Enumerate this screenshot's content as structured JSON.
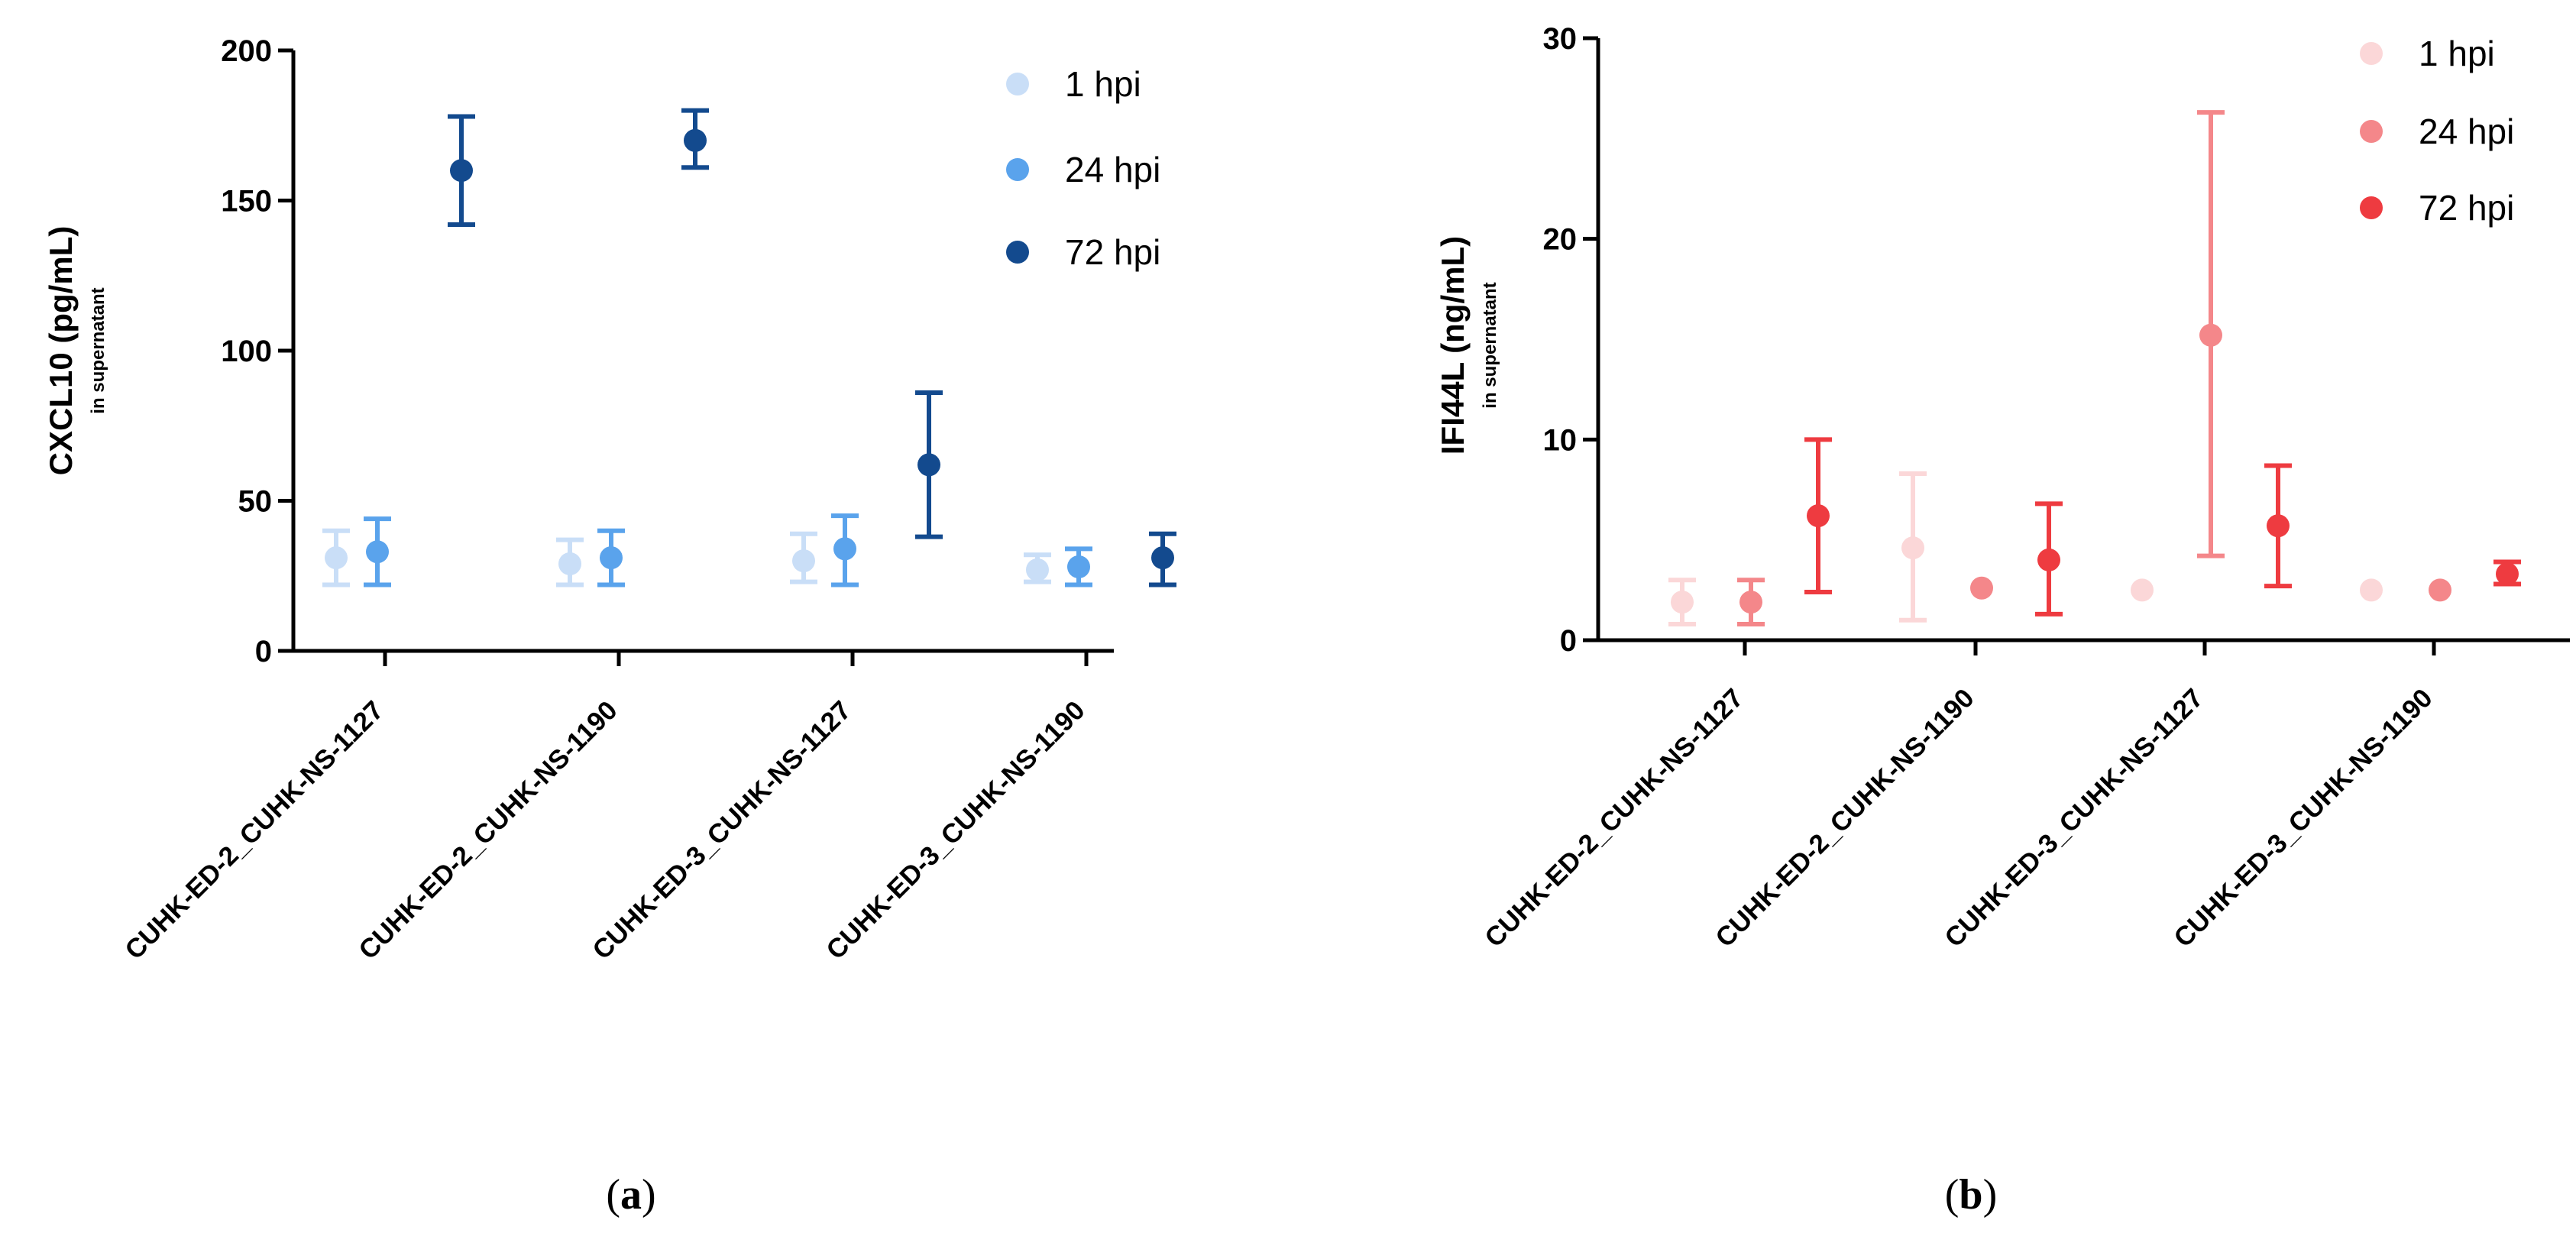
{
  "chart_data": [
    {
      "type": "scatter",
      "title": "",
      "panel_label": {
        "open": "(",
        "letter": "a",
        "close": ")"
      },
      "ylabel": "CXCL10 (pg/mL)",
      "ylabel_sub": "in supernatant",
      "ylim": [
        0,
        200
      ],
      "yticks": [
        0,
        50,
        100,
        150,
        200
      ],
      "categories": [
        "CUHK-ED-2_CUHK-NS-1127",
        "CUHK-ED-2_CUHK-NS-1190",
        "CUHK-ED-3_CUHK-NS-1127",
        "CUHK-ED-3_CUHK-NS-1190"
      ],
      "legend_position": "top-right",
      "series": [
        {
          "name": "1 hpi",
          "color": "#c9def7",
          "values": [
            31,
            29,
            30,
            27
          ],
          "err_low": [
            22,
            22,
            23,
            23
          ],
          "err_high": [
            40,
            37,
            39,
            32
          ]
        },
        {
          "name": "24 hpi",
          "color": "#5aa3ec",
          "values": [
            33,
            31,
            34,
            28
          ],
          "err_low": [
            22,
            22,
            22,
            22
          ],
          "err_high": [
            44,
            40,
            45,
            34
          ]
        },
        {
          "name": "72 hpi",
          "color": "#134a8e",
          "values": [
            160,
            170,
            62,
            31
          ],
          "err_low": [
            142,
            161,
            38,
            22
          ],
          "err_high": [
            178,
            180,
            86,
            39
          ],
          "present": [
            true,
            true,
            true,
            true
          ]
        }
      ]
    },
    {
      "type": "scatter",
      "title": "",
      "panel_label": {
        "open": "(",
        "letter": "b",
        "close": ")"
      },
      "ylabel": "IFI44L (ng/mL)",
      "ylabel_sub": "in supernatant",
      "ylim": [
        0,
        30
      ],
      "yticks": [
        0,
        10,
        20,
        30
      ],
      "categories": [
        "CUHK-ED-2_CUHK-NS-1127",
        "CUHK-ED-2_CUHK-NS-1190",
        "CUHK-ED-3_CUHK-NS-1127",
        "CUHK-ED-3_CUHK-NS-1190"
      ],
      "legend_position": "top-right",
      "series": [
        {
          "name": "1 hpi",
          "color": "#fbd7d8",
          "values": [
            1.9,
            4.6,
            2.5,
            2.5
          ],
          "err_low": [
            0.8,
            1.0,
            2.5,
            2.5
          ],
          "err_high": [
            3.0,
            8.3,
            2.5,
            2.5
          ]
        },
        {
          "name": "24 hpi",
          "color": "#f4878a",
          "values": [
            1.9,
            2.6,
            15.2,
            2.5
          ],
          "err_low": [
            0.8,
            2.6,
            4.2,
            2.5
          ],
          "err_high": [
            3.0,
            2.6,
            26.3,
            2.5
          ]
        },
        {
          "name": "72 hpi",
          "color": "#ee3b40",
          "values": [
            6.2,
            4.0,
            5.7,
            3.3
          ],
          "err_low": [
            2.4,
            1.3,
            2.7,
            2.8
          ],
          "err_high": [
            10.0,
            6.8,
            8.7,
            3.9
          ]
        }
      ]
    }
  ]
}
